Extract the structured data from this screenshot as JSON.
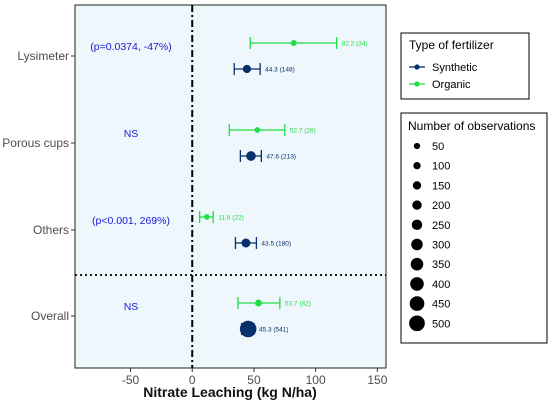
{
  "chart_data": {
    "type": "scatter",
    "subtype": "forest-plot",
    "xlabel": "Nitrate Leaching (kg N/ha)",
    "xlim": [
      -95,
      157
    ],
    "x_ticks": [
      "-50",
      "0",
      "50",
      "100",
      "150"
    ],
    "x_tick_values": [
      -50,
      0,
      50,
      100,
      150
    ],
    "categories": [
      "Lysimeter",
      "Porous cups",
      "Others",
      "Overall"
    ],
    "grid": false,
    "background": "#eef7fc",
    "series": [
      {
        "name": "Synthetic",
        "color": "#08306b",
        "points": [
          {
            "category": "Lysimeter",
            "value": 44.3,
            "lo": 34,
            "hi": 55,
            "n": 148,
            "label": "44.3 (148)"
          },
          {
            "category": "Porous cups",
            "value": 47.6,
            "lo": 39,
            "hi": 56,
            "n": 213,
            "label": "47.6 (213)"
          },
          {
            "category": "Others",
            "value": 43.5,
            "lo": 35,
            "hi": 52,
            "n": 180,
            "label": "43.5 (180)"
          },
          {
            "category": "Overall",
            "value": 45.3,
            "lo": 40,
            "hi": 50,
            "n": 541,
            "label": "45.3 (541)"
          }
        ]
      },
      {
        "name": "Organic",
        "color": "#22dd44",
        "points": [
          {
            "category": "Lysimeter",
            "value": 82.2,
            "lo": 47,
            "hi": 117,
            "n": 34,
            "label": "82.2 (34)"
          },
          {
            "category": "Porous cups",
            "value": 52.7,
            "lo": 30,
            "hi": 75,
            "n": 26,
            "label": "52.7 (26)"
          },
          {
            "category": "Others",
            "value": 11.8,
            "lo": 6,
            "hi": 17,
            "n": 22,
            "label": "11.8 (22)"
          },
          {
            "category": "Overall",
            "value": 53.7,
            "lo": 37,
            "hi": 71,
            "n": 82,
            "label": "53.7 (82)"
          }
        ]
      }
    ],
    "annotations": [
      {
        "category": "Lysimeter",
        "text": "(p=0.0374, -47%)"
      },
      {
        "category": "Porous cups",
        "text": "NS"
      },
      {
        "category": "Others",
        "text": "(p<0.001, 269%)"
      },
      {
        "category": "Overall",
        "text": "NS"
      }
    ],
    "reference_line": {
      "x": 0,
      "style": "dot-dash"
    },
    "separator": {
      "between": [
        "Others",
        "Overall"
      ],
      "style": "dotted"
    },
    "legend_fertilizer": {
      "title": "Type of fertilizer",
      "items": [
        {
          "label": "Synthetic",
          "color": "#08306b"
        },
        {
          "label": "Organic",
          "color": "#22dd44"
        }
      ]
    },
    "legend_size": {
      "title": "Number of observations",
      "values": [
        50,
        100,
        150,
        200,
        250,
        300,
        350,
        400,
        450,
        500
      ]
    }
  }
}
